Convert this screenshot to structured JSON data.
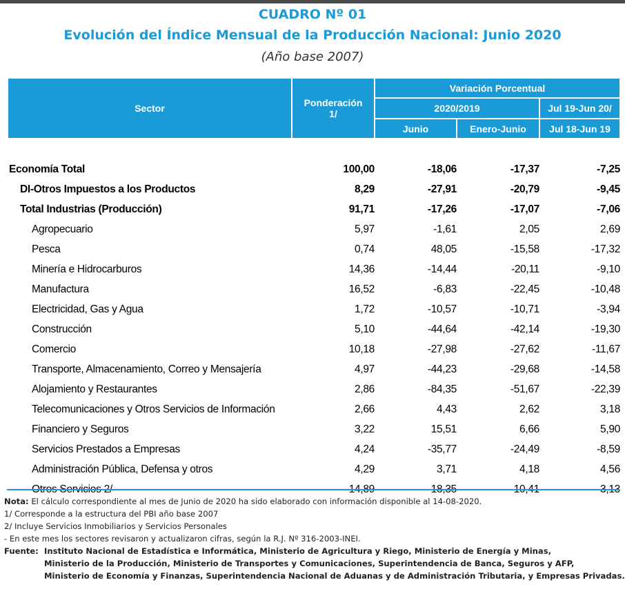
{
  "title": {
    "line1": "CUADRO Nº 01",
    "line2": "Evolución del Índice Mensual de la Producción Nacional: Junio 2020",
    "line3": "(Año base 2007)"
  },
  "table": {
    "headers": {
      "sector": "Sector",
      "ponderacion": "Ponderación",
      "ponderacion_note": "1/",
      "variacion": "Variación Porcentual",
      "period_2020_2019": "2020/2019",
      "period_annual_line1": "Jul 19-Jun 20/",
      "period_annual_line2": "Jul 18-Jun 19",
      "junio": "Junio",
      "enero_junio": "Enero-Junio"
    },
    "rows": [
      {
        "sector": "Economía Total",
        "ponderacion": "100,00",
        "junio": "-18,06",
        "enero_junio": "-17,37",
        "anual": "-7,25"
      },
      {
        "sector": "DI-Otros Impuestos a los Productos",
        "ponderacion": "8,29",
        "junio": "-27,91",
        "enero_junio": "-20,79",
        "anual": "-9,45"
      },
      {
        "sector": "Total  Industrias (Producción)",
        "ponderacion": "91,71",
        "junio": "-17,26",
        "enero_junio": "-17,07",
        "anual": "-7,06"
      },
      {
        "sector": "Agropecuario",
        "ponderacion": "5,97",
        "junio": "-1,61",
        "enero_junio": "2,05",
        "anual": "2,69"
      },
      {
        "sector": "Pesca",
        "ponderacion": "0,74",
        "junio": "48,05",
        "enero_junio": "-15,58",
        "anual": "-17,32"
      },
      {
        "sector": "Minería e Hidrocarburos",
        "ponderacion": "14,36",
        "junio": "-14,44",
        "enero_junio": "-20,11",
        "anual": "-9,10"
      },
      {
        "sector": "Manufactura",
        "ponderacion": "16,52",
        "junio": "-6,83",
        "enero_junio": "-22,45",
        "anual": "-10,48"
      },
      {
        "sector": "Electricidad, Gas y Agua",
        "ponderacion": "1,72",
        "junio": "-10,57",
        "enero_junio": "-10,71",
        "anual": "-3,94"
      },
      {
        "sector": "Construcción",
        "ponderacion": "5,10",
        "junio": "-44,64",
        "enero_junio": "-42,14",
        "anual": "-19,30"
      },
      {
        "sector": "Comercio",
        "ponderacion": "10,18",
        "junio": "-27,98",
        "enero_junio": "-27,62",
        "anual": "-11,67"
      },
      {
        "sector": "Transporte, Almacenamiento, Correo y Mensajería",
        "ponderacion": "4,97",
        "junio": "-44,23",
        "enero_junio": "-29,68",
        "anual": "-14,58"
      },
      {
        "sector": "Alojamiento y Restaurantes",
        "ponderacion": "2,86",
        "junio": "-84,35",
        "enero_junio": "-51,67",
        "anual": "-22,39"
      },
      {
        "sector": "Telecomunicaciones y Otros Servicios de Información",
        "ponderacion": "2,66",
        "junio": "4,43",
        "enero_junio": "2,62",
        "anual": "3,18"
      },
      {
        "sector": "Financiero y Seguros",
        "ponderacion": "3,22",
        "junio": "15,51",
        "enero_junio": "6,66",
        "anual": "5,90"
      },
      {
        "sector": "Servicios Prestados a Empresas",
        "ponderacion": "4,24",
        "junio": "-35,77",
        "enero_junio": "-24,49",
        "anual": "-8,59"
      },
      {
        "sector": "Administración Pública, Defensa y otros",
        "ponderacion": "4,29",
        "junio": "3,71",
        "enero_junio": "4,18",
        "anual": "4,56"
      },
      {
        "sector": "Otros Servicios 2/",
        "ponderacion": "14,89",
        "junio": "-18,35",
        "enero_junio": "-10,41",
        "anual": "-3,13"
      }
    ]
  },
  "notes": {
    "nota_label": "Nota:",
    "nota_text": "El cálculo correspondiente al mes de Junio de 2020 ha sido elaborado con información disponible al 14-08-2020.",
    "note1": "1/ Corresponde a la estructura del PBI año base 2007",
    "note2": "2/ Incluye Servicios Inmobiliarios y Servicios Personales",
    "note3": "- En este mes los sectores revisaron y actualizaron cifras, según la R.J. Nº 316-2003-INEI.",
    "fuente_label": "Fuente:",
    "fuente_lines": [
      "Instituto Nacional de Estadística e Informática, Ministerio de Agricultura y Riego, Ministerio de Energía y Minas,",
      "Ministerio de la Producción, Ministerio de Transportes y Comunicaciones, Superintendencia de Banca, Seguros y AFP,",
      "Ministerio de Economía y Finanzas, Superintendencia Nacional de Aduanas y de Administración Tributaria, y Empresas Privadas."
    ]
  },
  "colors": {
    "accent": "#1a9ad6",
    "header_text": "#ffffff"
  }
}
